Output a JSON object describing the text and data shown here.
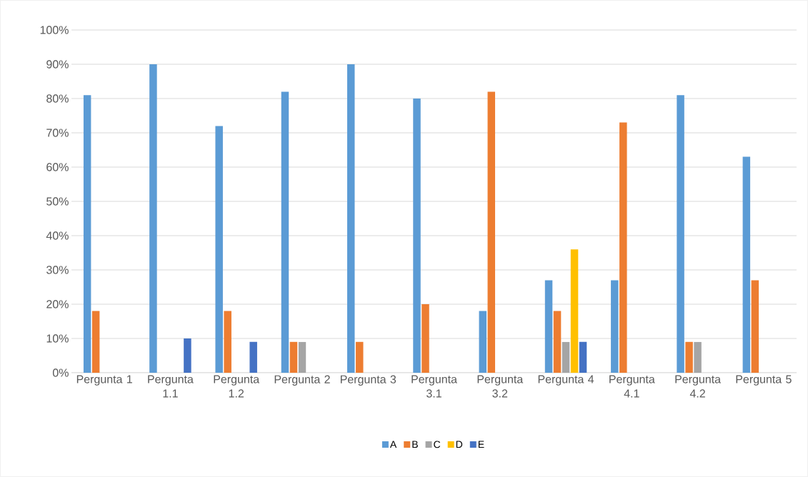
{
  "chart_data": {
    "type": "bar",
    "categories": [
      "Pergunta 1",
      "Pergunta 1.1",
      "Pergunta 1.2",
      "Pergunta 2",
      "Pergunta 3",
      "Pergunta 3.1",
      "Pergunta 3.2",
      "Pergunta 4",
      "Pergunta 4.1",
      "Pergunta 4.2",
      "Pergunta 5"
    ],
    "series": [
      {
        "name": "A",
        "color": "#5b9bd5",
        "values": [
          81,
          90,
          72,
          82,
          90,
          80,
          18,
          27,
          27,
          81,
          63
        ]
      },
      {
        "name": "B",
        "color": "#ed7d31",
        "values": [
          18,
          null,
          18,
          9,
          9,
          20,
          82,
          18,
          73,
          9,
          27
        ]
      },
      {
        "name": "C",
        "color": "#a5a5a5",
        "values": [
          null,
          null,
          null,
          9,
          null,
          null,
          null,
          9,
          null,
          9,
          null
        ]
      },
      {
        "name": "D",
        "color": "#ffc000",
        "values": [
          null,
          null,
          null,
          null,
          null,
          null,
          null,
          36,
          null,
          null,
          null
        ]
      },
      {
        "name": "E",
        "color": "#4472c4",
        "values": [
          null,
          10,
          9,
          null,
          null,
          null,
          null,
          9,
          null,
          null,
          null
        ]
      }
    ],
    "ylim": [
      0,
      100
    ],
    "yticks": [
      {
        "value": 0,
        "label": "0%"
      },
      {
        "value": 10,
        "label": "10%"
      },
      {
        "value": 20,
        "label": "20%"
      },
      {
        "value": 30,
        "label": "30%"
      },
      {
        "value": 40,
        "label": "40%"
      },
      {
        "value": 50,
        "label": "50%"
      },
      {
        "value": 60,
        "label": "60%"
      },
      {
        "value": 70,
        "label": "70%"
      },
      {
        "value": 80,
        "label": "80%"
      },
      {
        "value": 90,
        "label": "90%"
      },
      {
        "value": 100,
        "label": "100%"
      }
    ],
    "grid": "y",
    "legend": "bottom"
  }
}
